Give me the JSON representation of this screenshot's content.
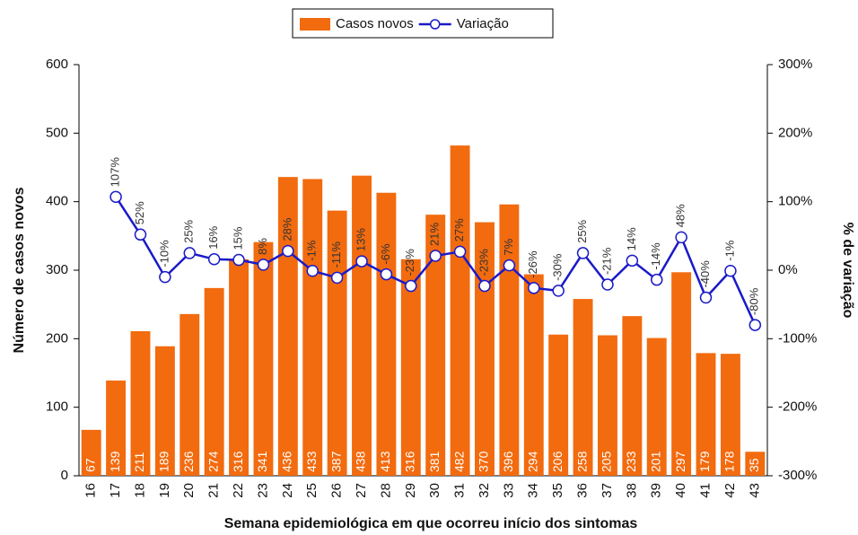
{
  "chart_data": {
    "type": "bar",
    "x_label": "Semana epidemiológica em que ocorreu início dos sintomas",
    "y_label": "Número de casos novos",
    "y2_label": "% de variação",
    "categories": [
      "16",
      "17",
      "18",
      "19",
      "20",
      "21",
      "22",
      "23",
      "24",
      "25",
      "26",
      "27",
      "28",
      "29",
      "30",
      "31",
      "32",
      "33",
      "34",
      "35",
      "36",
      "37",
      "38",
      "39",
      "40",
      "41",
      "42",
      "43"
    ],
    "series": [
      {
        "name": "Casos novos",
        "type": "bar",
        "color": "#f26b0f",
        "values": [
          67,
          139,
          211,
          189,
          236,
          274,
          316,
          341,
          436,
          433,
          387,
          438,
          413,
          316,
          381,
          482,
          370,
          396,
          294,
          206,
          258,
          205,
          233,
          201,
          297,
          179,
          178,
          35
        ]
      },
      {
        "name": "Variação",
        "type": "line",
        "axis": "y2",
        "color": "#1a1ac8",
        "values": [
          null,
          107,
          52,
          -10,
          25,
          16,
          15,
          8,
          28,
          -1,
          -11,
          13,
          -6,
          -23,
          21,
          27,
          -23,
          7,
          -26,
          -30,
          25,
          -21,
          14,
          -14,
          48,
          -40,
          -1,
          -80
        ],
        "value_labels": [
          null,
          "107%",
          "52%",
          "-10%",
          "25%",
          "16%",
          "15%",
          "8%",
          "28%",
          "-1%",
          "-11%",
          "13%",
          "-6%",
          "-23%",
          "21%",
          "27%",
          "-23%",
          "7%",
          "-26%",
          "-30%",
          "25%",
          "-21%",
          "14%",
          "-14%",
          "48%",
          "-40%",
          "-1%",
          "-80%"
        ]
      }
    ],
    "ylim": [
      0,
      600
    ],
    "yticks": [
      0,
      100,
      200,
      300,
      400,
      500,
      600
    ],
    "y2lim": [
      -300,
      300
    ],
    "y2ticks": [
      {
        "value": -300,
        "label": "-300%"
      },
      {
        "value": -200,
        "label": "-200%"
      },
      {
        "value": -100,
        "label": "-100%"
      },
      {
        "value": 0,
        "label": "0%"
      },
      {
        "value": 100,
        "label": "100%"
      },
      {
        "value": 200,
        "label": "200%"
      },
      {
        "value": 300,
        "label": "300%"
      }
    ],
    "legend": "top"
  }
}
